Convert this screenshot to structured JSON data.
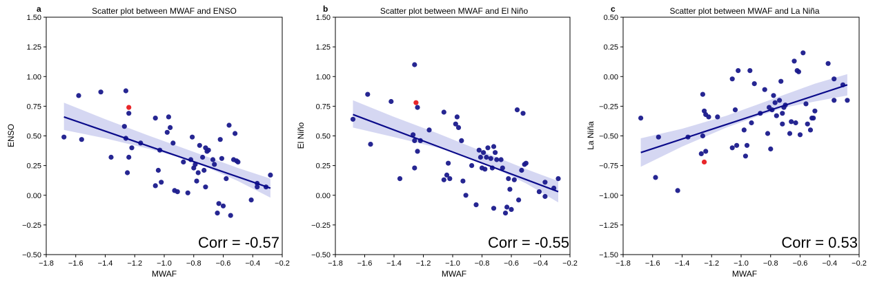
{
  "colors": {
    "point": "#1a1a8c",
    "highlight": "#e8262a",
    "line": "#0a0a8a",
    "band": "#c7c9ee",
    "axis": "#000000"
  },
  "chart_data": [
    {
      "type": "scatter",
      "panel_label": "a",
      "title": "Scatter plot between MWAF and ENSO",
      "xlabel": "MWAF",
      "ylabel": "ENSO",
      "xlim": [
        -1.8,
        -0.2
      ],
      "ylim": [
        -0.5,
        1.5
      ],
      "xticks": [
        "−1.8",
        "−1.6",
        "−1.4",
        "−1.2",
        "−1.0",
        "−0.8",
        "−0.6",
        "−0.4",
        "−0.2"
      ],
      "yticks": [
        "−0.50",
        "−0.25",
        "0.00",
        "0.25",
        "0.50",
        "0.75",
        "1.00",
        "1.25",
        "1.50"
      ],
      "grid": false,
      "annotation": "Corr = -0.57",
      "regression": {
        "x": [
          -1.68,
          -0.28
        ],
        "y": [
          0.66,
          0.06
        ]
      },
      "confidence_band": {
        "x": [
          -1.68,
          -1.4,
          -1.1,
          -0.9,
          -0.7,
          -0.5,
          -0.28
        ],
        "lower": [
          0.55,
          0.48,
          0.39,
          0.32,
          0.23,
          0.12,
          -0.02
        ],
        "upper": [
          0.78,
          0.64,
          0.5,
          0.41,
          0.32,
          0.23,
          0.14
        ]
      },
      "highlight": {
        "x": -1.24,
        "y": 0.74
      },
      "points": [
        [
          -1.68,
          0.49
        ],
        [
          -1.58,
          0.84
        ],
        [
          -1.56,
          0.47
        ],
        [
          -1.43,
          0.87
        ],
        [
          -1.36,
          0.32
        ],
        [
          -1.27,
          0.58
        ],
        [
          -1.26,
          0.88
        ],
        [
          -1.26,
          0.48
        ],
        [
          -1.25,
          0.19
        ],
        [
          -1.24,
          0.69
        ],
        [
          -1.24,
          0.32
        ],
        [
          -1.22,
          0.4
        ],
        [
          -1.16,
          0.44
        ],
        [
          -1.06,
          0.65
        ],
        [
          -1.06,
          0.08
        ],
        [
          -1.04,
          0.21
        ],
        [
          -1.03,
          0.38
        ],
        [
          -1.02,
          0.11
        ],
        [
          -0.98,
          0.53
        ],
        [
          -0.97,
          0.66
        ],
        [
          -0.96,
          0.57
        ],
        [
          -0.94,
          0.44
        ],
        [
          -0.93,
          0.04
        ],
        [
          -0.91,
          0.03
        ],
        [
          -0.87,
          0.28
        ],
        [
          -0.84,
          0.02
        ],
        [
          -0.82,
          0.3
        ],
        [
          -0.81,
          0.49
        ],
        [
          -0.8,
          0.23
        ],
        [
          -0.79,
          0.26
        ],
        [
          -0.78,
          0.12
        ],
        [
          -0.77,
          0.19
        ],
        [
          -0.76,
          0.42
        ],
        [
          -0.74,
          0.32
        ],
        [
          -0.73,
          0.21
        ],
        [
          -0.72,
          0.4
        ],
        [
          -0.72,
          0.07
        ],
        [
          -0.71,
          0.37
        ],
        [
          -0.7,
          0.38
        ],
        [
          -0.67,
          0.3
        ],
        [
          -0.66,
          0.26
        ],
        [
          -0.64,
          -0.15
        ],
        [
          -0.63,
          -0.07
        ],
        [
          -0.62,
          0.47
        ],
        [
          -0.61,
          0.31
        ],
        [
          -0.6,
          -0.09
        ],
        [
          -0.58,
          0.14
        ],
        [
          -0.56,
          0.59
        ],
        [
          -0.55,
          -0.17
        ],
        [
          -0.53,
          0.3
        ],
        [
          -0.52,
          0.52
        ],
        [
          -0.51,
          0.29
        ],
        [
          -0.5,
          0.28
        ],
        [
          -0.41,
          -0.04
        ],
        [
          -0.37,
          0.1
        ],
        [
          -0.37,
          0.07
        ],
        [
          -0.31,
          0.07
        ],
        [
          -0.28,
          0.17
        ]
      ]
    },
    {
      "type": "scatter",
      "panel_label": "b",
      "title": "Scatter plot between MWAF and El Niño",
      "xlabel": "MWAF",
      "ylabel": "El Niño",
      "xlim": [
        -1.8,
        -0.2
      ],
      "ylim": [
        -0.5,
        1.5
      ],
      "xticks": [
        "−1.8",
        "−1.6",
        "−1.4",
        "−1.2",
        "−1.0",
        "−0.8",
        "−0.6",
        "−0.4",
        "−0.2"
      ],
      "yticks": [
        "−0.50",
        "−0.25",
        "0.00",
        "0.25",
        "0.50",
        "0.75",
        "1.00",
        "1.25",
        "1.50"
      ],
      "grid": false,
      "annotation": "Corr = -0.55",
      "regression": {
        "x": [
          -1.68,
          -0.28
        ],
        "y": [
          0.68,
          0.03
        ]
      },
      "confidence_band": {
        "x": [
          -1.68,
          -1.4,
          -1.1,
          -0.9,
          -0.7,
          -0.5,
          -0.28
        ],
        "lower": [
          0.57,
          0.49,
          0.4,
          0.32,
          0.22,
          0.1,
          -0.06
        ],
        "upper": [
          0.8,
          0.66,
          0.52,
          0.42,
          0.32,
          0.22,
          0.12
        ]
      },
      "highlight": {
        "x": -1.25,
        "y": 0.78
      },
      "points": [
        [
          -1.68,
          0.64
        ],
        [
          -1.58,
          0.85
        ],
        [
          -1.56,
          0.43
        ],
        [
          -1.42,
          0.79
        ],
        [
          -1.36,
          0.14
        ],
        [
          -1.27,
          0.51
        ],
        [
          -1.26,
          1.1
        ],
        [
          -1.26,
          0.46
        ],
        [
          -1.26,
          0.23
        ],
        [
          -1.24,
          0.74
        ],
        [
          -1.24,
          0.37
        ],
        [
          -1.22,
          0.46
        ],
        [
          -1.16,
          0.55
        ],
        [
          -1.06,
          0.7
        ],
        [
          -1.06,
          0.13
        ],
        [
          -1.04,
          0.17
        ],
        [
          -1.03,
          0.27
        ],
        [
          -1.02,
          0.14
        ],
        [
          -0.98,
          0.6
        ],
        [
          -0.97,
          0.66
        ],
        [
          -0.96,
          0.57
        ],
        [
          -0.94,
          0.46
        ],
        [
          -0.93,
          0.12
        ],
        [
          -0.91,
          0.0
        ],
        [
          -0.87,
          0.25
        ],
        [
          -0.84,
          -0.08
        ],
        [
          -0.82,
          0.38
        ],
        [
          -0.81,
          0.32
        ],
        [
          -0.8,
          0.23
        ],
        [
          -0.79,
          0.36
        ],
        [
          -0.78,
          0.22
        ],
        [
          -0.77,
          0.32
        ],
        [
          -0.76,
          0.4
        ],
        [
          -0.74,
          0.31
        ],
        [
          -0.73,
          0.23
        ],
        [
          -0.72,
          0.41
        ],
        [
          -0.72,
          -0.11
        ],
        [
          -0.71,
          0.36
        ],
        [
          -0.7,
          0.3
        ],
        [
          -0.67,
          0.3
        ],
        [
          -0.66,
          0.23
        ],
        [
          -0.64,
          -0.15
        ],
        [
          -0.63,
          -0.1
        ],
        [
          -0.62,
          0.14
        ],
        [
          -0.61,
          0.05
        ],
        [
          -0.6,
          -0.12
        ],
        [
          -0.58,
          0.13
        ],
        [
          -0.56,
          0.72
        ],
        [
          -0.55,
          -0.04
        ],
        [
          -0.53,
          0.21
        ],
        [
          -0.52,
          0.69
        ],
        [
          -0.51,
          0.26
        ],
        [
          -0.5,
          0.27
        ],
        [
          -0.41,
          0.03
        ],
        [
          -0.37,
          0.11
        ],
        [
          -0.37,
          -0.01
        ],
        [
          -0.31,
          0.06
        ],
        [
          -0.28,
          0.14
        ]
      ]
    },
    {
      "type": "scatter",
      "panel_label": "c",
      "title": "Scatter plot between MWAF and La Niña",
      "xlabel": "MWAF",
      "ylabel": "La Niña",
      "xlim": [
        -1.8,
        -0.2
      ],
      "ylim": [
        -1.5,
        0.5
      ],
      "xticks": [
        "−1.8",
        "−1.6",
        "−1.4",
        "−1.2",
        "−1.0",
        "−0.8",
        "−0.6",
        "−0.4",
        "−0.2"
      ],
      "yticks": [
        "−1.50",
        "−1.25",
        "−1.00",
        "−0.75",
        "−0.50",
        "−0.25",
        "0.00",
        "0.25",
        "0.50"
      ],
      "grid": false,
      "annotation": "Corr = 0.53",
      "regression": {
        "x": [
          -1.68,
          -0.28
        ],
        "y": [
          -0.64,
          -0.07
        ]
      },
      "confidence_band": {
        "x": [
          -1.68,
          -1.4,
          -1.1,
          -0.9,
          -0.7,
          -0.5,
          -0.28
        ],
        "lower": [
          -0.76,
          -0.59,
          -0.43,
          -0.34,
          -0.26,
          -0.21,
          -0.16
        ],
        "upper": [
          -0.52,
          -0.44,
          -0.33,
          -0.24,
          -0.15,
          -0.06,
          0.02
        ]
      },
      "highlight": {
        "x": -1.25,
        "y": -0.72
      },
      "points": [
        [
          -1.68,
          -0.35
        ],
        [
          -1.58,
          -0.85
        ],
        [
          -1.56,
          -0.51
        ],
        [
          -1.43,
          -0.96
        ],
        [
          -1.36,
          -0.51
        ],
        [
          -1.27,
          -0.65
        ],
        [
          -1.26,
          -0.15
        ],
        [
          -1.26,
          -0.5
        ],
        [
          -1.25,
          -0.29
        ],
        [
          -1.24,
          -0.63
        ],
        [
          -1.24,
          -0.32
        ],
        [
          -1.22,
          -0.34
        ],
        [
          -1.16,
          -0.34
        ],
        [
          -1.06,
          -0.02
        ],
        [
          -1.06,
          -0.6
        ],
        [
          -1.04,
          -0.28
        ],
        [
          -1.03,
          -0.58
        ],
        [
          -1.02,
          0.05
        ],
        [
          -0.98,
          -0.45
        ],
        [
          -0.97,
          -0.67
        ],
        [
          -0.96,
          -0.58
        ],
        [
          -0.94,
          0.05
        ],
        [
          -0.93,
          -0.39
        ],
        [
          -0.91,
          -0.06
        ],
        [
          -0.87,
          -0.31
        ],
        [
          -0.84,
          -0.11
        ],
        [
          -0.82,
          -0.48
        ],
        [
          -0.81,
          -0.26
        ],
        [
          -0.8,
          -0.61
        ],
        [
          -0.79,
          -0.28
        ],
        [
          -0.78,
          -0.16
        ],
        [
          -0.77,
          -0.22
        ],
        [
          -0.76,
          -0.33
        ],
        [
          -0.74,
          -0.2
        ],
        [
          -0.73,
          -0.04
        ],
        [
          -0.72,
          -0.4
        ],
        [
          -0.72,
          -0.31
        ],
        [
          -0.71,
          -0.26
        ],
        [
          -0.7,
          -0.24
        ],
        [
          -0.67,
          -0.48
        ],
        [
          -0.66,
          -0.38
        ],
        [
          -0.64,
          0.13
        ],
        [
          -0.63,
          -0.39
        ],
        [
          -0.62,
          0.05
        ],
        [
          -0.61,
          0.04
        ],
        [
          -0.6,
          -0.49
        ],
        [
          -0.58,
          0.2
        ],
        [
          -0.56,
          -0.23
        ],
        [
          -0.55,
          -0.4
        ],
        [
          -0.53,
          -0.45
        ],
        [
          -0.52,
          -0.35
        ],
        [
          -0.51,
          -0.35
        ],
        [
          -0.5,
          -0.29
        ],
        [
          -0.41,
          0.11
        ],
        [
          -0.37,
          -0.02
        ],
        [
          -0.37,
          -0.2
        ],
        [
          -0.31,
          -0.07
        ],
        [
          -0.28,
          -0.2
        ]
      ]
    }
  ]
}
